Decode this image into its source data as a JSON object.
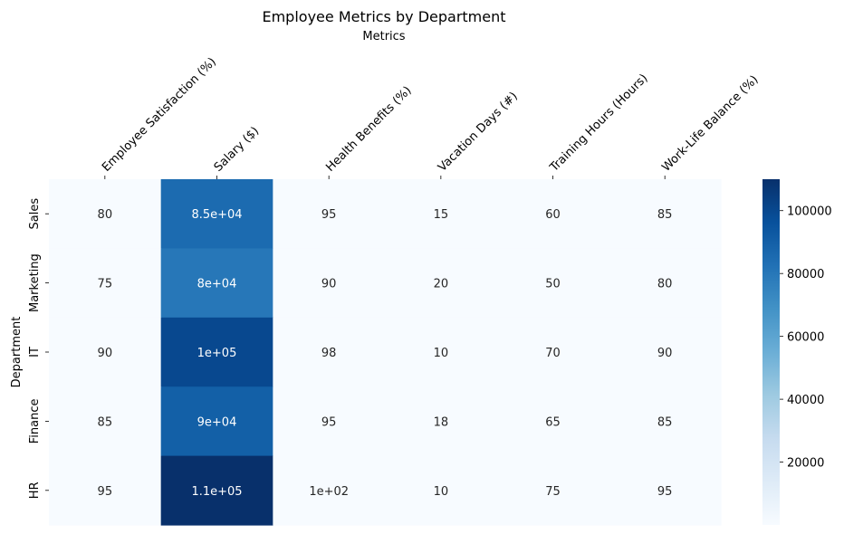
{
  "chart_data": {
    "type": "heatmap",
    "title": "Employee Metrics by Department",
    "xlabel": "Metrics",
    "ylabel": "Department",
    "x_categories": [
      "Employee Satisfaction (%)",
      "Salary ($)",
      "Health Benefits (%)",
      "Vacation Days (#)",
      "Training Hours (Hours)",
      "Work-Life Balance (%)"
    ],
    "y_categories": [
      "Sales",
      "Marketing",
      "IT",
      "Finance",
      "HR"
    ],
    "values": [
      [
        80,
        85000,
        95,
        15,
        60,
        85
      ],
      [
        75,
        80000,
        90,
        20,
        50,
        80
      ],
      [
        90,
        100000,
        98,
        10,
        70,
        90
      ],
      [
        85,
        90000,
        95,
        18,
        65,
        85
      ],
      [
        95,
        110000,
        100,
        10,
        75,
        95
      ]
    ],
    "annotations": [
      [
        "80",
        "8.5e+04",
        "95",
        "15",
        "60",
        "85"
      ],
      [
        "75",
        "8e+04",
        "90",
        "20",
        "50",
        "80"
      ],
      [
        "90",
        "1e+05",
        "98",
        "10",
        "70",
        "90"
      ],
      [
        "85",
        "9e+04",
        "95",
        "18",
        "65",
        "85"
      ],
      [
        "95",
        "1.1e+05",
        "1e+02",
        "10",
        "75",
        "95"
      ]
    ],
    "colormap": "Blues",
    "vmin": 10,
    "vmax": 110000,
    "colorbar_ticks": [
      20000,
      40000,
      60000,
      80000,
      100000
    ],
    "colorbar_tick_labels": [
      "20000",
      "40000",
      "60000",
      "80000",
      "100000"
    ],
    "x_tick_position": "top",
    "x_tick_rotation": -45,
    "y_tick_rotation": -90,
    "legend": "colorbar-right",
    "grid": false
  }
}
